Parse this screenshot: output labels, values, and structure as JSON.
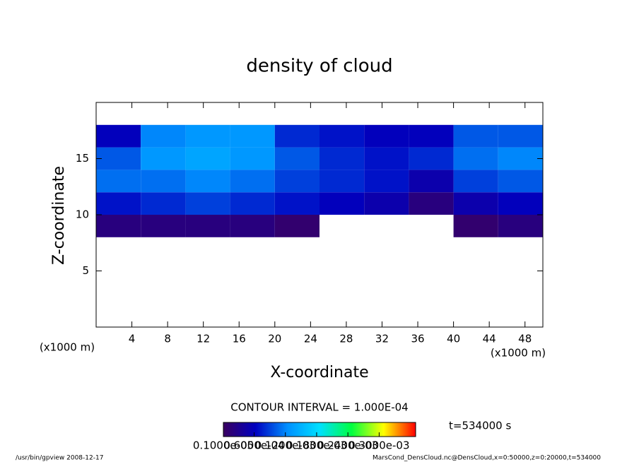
{
  "chart_data": {
    "type": "heatmap",
    "title": "density of cloud",
    "x_label": "X-coordinate",
    "y_label": "Z-coordinate",
    "x_unit_label": "(x1000 m)",
    "y_unit_label": "(x1000 m)",
    "xlim": [
      0,
      50
    ],
    "xticks": [
      4,
      8,
      12,
      16,
      20,
      24,
      28,
      32,
      36,
      40,
      44,
      48
    ],
    "ylim": [
      0,
      20
    ],
    "yticks": [
      5,
      10,
      15
    ],
    "xbins": [
      0,
      5,
      10,
      15,
      20,
      25,
      30,
      35,
      40,
      45,
      50
    ],
    "ybins": [
      8,
      10,
      12,
      14,
      16,
      18
    ],
    "z": [
      [
        2e-05,
        2e-05,
        2e-05,
        2e-05,
        1e-05,
        null,
        null,
        null,
        1e-05,
        2e-05
      ],
      [
        7e-05,
        8e-05,
        9e-05,
        8e-05,
        7e-05,
        6e-05,
        5e-05,
        2e-05,
        5e-05,
        6e-05
      ],
      [
        0.00011,
        0.00011,
        0.00012,
        0.00011,
        9e-05,
        8e-05,
        7e-05,
        5e-05,
        9e-05,
        0.0001
      ],
      [
        0.0001,
        0.00013,
        0.00014,
        0.00013,
        0.0001,
        8e-05,
        7e-05,
        8e-05,
        0.00011,
        0.00012
      ],
      [
        6e-05,
        0.00012,
        0.00013,
        0.00013,
        8e-05,
        7e-05,
        6e-05,
        6e-05,
        0.0001,
        0.0001
      ]
    ],
    "colors": [
      "#3a0060",
      "#0000c0",
      "#0090ff",
      "#00e0ff",
      "#00ff40",
      "#ffff00",
      "#ff0000"
    ],
    "clim": [
      1e-06,
      0.00037
    ],
    "cticks": [
      {
        "value": 1e-06,
        "label": "0.1000e-05"
      },
      {
        "value": 6e-05,
        "label": "0.6000e-04"
      },
      {
        "value": 0.00012,
        "label": "0.1200e-03"
      },
      {
        "value": 0.00018,
        "label": "0.1800e-03"
      },
      {
        "value": 0.00024,
        "label": "0.2400e-03"
      },
      {
        "value": 0.0003,
        "label": "0.3000e-03"
      }
    ],
    "contour_note": "CONTOUR INTERVAL = 1.000E-04",
    "time_label": "t=534000 s",
    "footer_left": "/usr/bin/gpview  2008-12-17",
    "footer_right": "MarsCond_DensCloud.nc@DensCloud,x=0:50000,z=0:20000,t=534000"
  }
}
